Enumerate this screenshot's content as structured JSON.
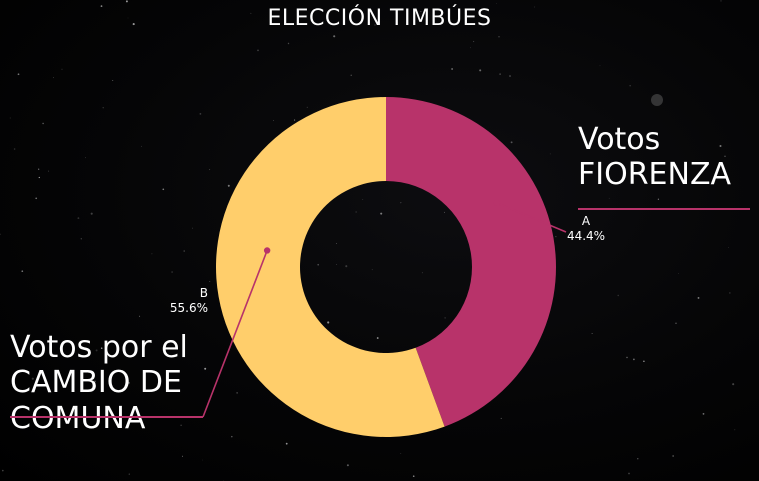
{
  "title": "ELECCIÓN TIMBÚES",
  "colors": {
    "series_a": "#B8336A",
    "series_b": "#FFCE6B",
    "background": "#000000",
    "text": "#FFFFFF"
  },
  "callouts": {
    "a": {
      "line1": "Votos",
      "line2": "FIORENZA"
    },
    "b": {
      "line1": "Votos por el",
      "line2": "CAMBIO DE",
      "line3": "COMUNA"
    }
  },
  "chart_data": {
    "type": "pie",
    "style": "donut",
    "title": "ELECCIÓN TIMBÚES",
    "categories": [
      "A",
      "B"
    ],
    "values": [
      44.4,
      55.6
    ],
    "data_labels": [
      "44.4%",
      "55.6%"
    ],
    "colors": [
      "#B8336A",
      "#FFCE6B"
    ],
    "legend": "none"
  }
}
